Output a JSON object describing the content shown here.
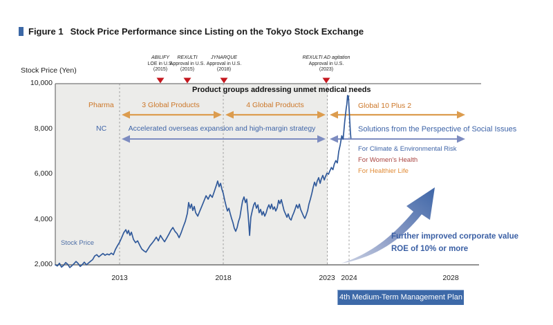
{
  "figure": {
    "label": "Figure 1",
    "title": "Stock Price Performance since Listing on the Tokyo Stock Exchange"
  },
  "chart_data": {
    "type": "line",
    "title": "Stock Price Performance since Listing on the Tokyo Stock Exchange",
    "xlabel": "",
    "ylabel": "Stock Price (Yen)",
    "series_label": "Stock Price",
    "ylim": [
      2000,
      10000
    ],
    "grid": false,
    "legend_position": "inline-left",
    "y_ticks": [
      {
        "value": 10000,
        "label": "10,000"
      },
      {
        "value": 8000,
        "label": "8,000"
      },
      {
        "value": 6000,
        "label": "6,000"
      },
      {
        "value": 4000,
        "label": "4,000"
      },
      {
        "value": 2000,
        "label": "2,000"
      }
    ],
    "x_ticks": [
      {
        "value": 2013,
        "label": "2013"
      },
      {
        "value": 2018,
        "label": "2018"
      },
      {
        "value": 2023,
        "label": "2023"
      },
      {
        "value": 2024,
        "label": "2024"
      },
      {
        "value": 2028,
        "label": "2028"
      }
    ],
    "dashed_gridline_years": [
      2013,
      2018,
      2023,
      2024
    ],
    "shaded_region_years": [
      2009.9,
      2023
    ],
    "points": [
      [
        2009.9,
        2000
      ],
      [
        2010.0,
        1950
      ],
      [
        2010.1,
        2070
      ],
      [
        2010.2,
        1900
      ],
      [
        2010.3,
        1980
      ],
      [
        2010.4,
        2100
      ],
      [
        2010.5,
        2020
      ],
      [
        2010.6,
        1880
      ],
      [
        2010.7,
        1960
      ],
      [
        2010.8,
        2050
      ],
      [
        2010.9,
        2150
      ],
      [
        2011.0,
        2060
      ],
      [
        2011.1,
        1930
      ],
      [
        2011.2,
        2010
      ],
      [
        2011.3,
        2120
      ],
      [
        2011.4,
        2000
      ],
      [
        2011.5,
        2080
      ],
      [
        2011.6,
        2160
      ],
      [
        2011.7,
        2230
      ],
      [
        2011.8,
        2390
      ],
      [
        2011.9,
        2450
      ],
      [
        2012.0,
        2350
      ],
      [
        2012.1,
        2430
      ],
      [
        2012.2,
        2500
      ],
      [
        2012.3,
        2420
      ],
      [
        2012.4,
        2480
      ],
      [
        2012.5,
        2440
      ],
      [
        2012.6,
        2520
      ],
      [
        2012.7,
        2450
      ],
      [
        2012.8,
        2680
      ],
      [
        2012.9,
        2850
      ],
      [
        2013.0,
        3000
      ],
      [
        2013.1,
        3200
      ],
      [
        2013.2,
        3420
      ],
      [
        2013.3,
        3550
      ],
      [
        2013.37,
        3380
      ],
      [
        2013.43,
        3520
      ],
      [
        2013.5,
        3300
      ],
      [
        2013.57,
        3440
      ],
      [
        2013.67,
        3120
      ],
      [
        2013.77,
        2980
      ],
      [
        2013.87,
        3060
      ],
      [
        2013.97,
        2870
      ],
      [
        2014.07,
        2700
      ],
      [
        2014.17,
        2620
      ],
      [
        2014.27,
        2560
      ],
      [
        2014.37,
        2700
      ],
      [
        2014.47,
        2850
      ],
      [
        2014.57,
        2960
      ],
      [
        2014.67,
        3080
      ],
      [
        2014.77,
        3220
      ],
      [
        2014.87,
        3060
      ],
      [
        2014.97,
        3300
      ],
      [
        2015.07,
        3150
      ],
      [
        2015.17,
        3020
      ],
      [
        2015.27,
        3180
      ],
      [
        2015.37,
        3340
      ],
      [
        2015.47,
        3520
      ],
      [
        2015.57,
        3650
      ],
      [
        2015.67,
        3480
      ],
      [
        2015.77,
        3380
      ],
      [
        2015.87,
        3200
      ],
      [
        2015.97,
        3420
      ],
      [
        2016.07,
        3680
      ],
      [
        2016.17,
        3920
      ],
      [
        2016.27,
        4280
      ],
      [
        2016.33,
        4750
      ],
      [
        2016.4,
        4500
      ],
      [
        2016.47,
        4680
      ],
      [
        2016.53,
        4400
      ],
      [
        2016.6,
        4580
      ],
      [
        2016.67,
        4300
      ],
      [
        2016.77,
        4150
      ],
      [
        2016.87,
        4380
      ],
      [
        2016.97,
        4600
      ],
      [
        2017.07,
        4820
      ],
      [
        2017.17,
        5050
      ],
      [
        2017.27,
        4900
      ],
      [
        2017.37,
        5100
      ],
      [
        2017.47,
        4980
      ],
      [
        2017.57,
        5250
      ],
      [
        2017.67,
        5520
      ],
      [
        2017.73,
        5700
      ],
      [
        2017.8,
        5450
      ],
      [
        2017.87,
        5600
      ],
      [
        2017.93,
        5350
      ],
      [
        2018.0,
        5150
      ],
      [
        2018.07,
        4850
      ],
      [
        2018.13,
        4620
      ],
      [
        2018.2,
        4380
      ],
      [
        2018.27,
        4500
      ],
      [
        2018.33,
        4280
      ],
      [
        2018.4,
        4050
      ],
      [
        2018.47,
        3850
      ],
      [
        2018.53,
        3620
      ],
      [
        2018.6,
        3480
      ],
      [
        2018.67,
        3650
      ],
      [
        2018.73,
        3900
      ],
      [
        2018.8,
        4100
      ],
      [
        2018.87,
        4500
      ],
      [
        2018.93,
        4820
      ],
      [
        2019.0,
        5000
      ],
      [
        2019.07,
        4750
      ],
      [
        2019.13,
        4900
      ],
      [
        2019.2,
        4200
      ],
      [
        2019.27,
        3300
      ],
      [
        2019.33,
        4100
      ],
      [
        2019.4,
        4400
      ],
      [
        2019.47,
        4650
      ],
      [
        2019.53,
        4750
      ],
      [
        2019.6,
        4500
      ],
      [
        2019.67,
        4650
      ],
      [
        2019.73,
        4300
      ],
      [
        2019.8,
        4450
      ],
      [
        2019.87,
        4200
      ],
      [
        2019.93,
        4350
      ],
      [
        2020.0,
        4150
      ],
      [
        2020.07,
        4300
      ],
      [
        2020.13,
        4500
      ],
      [
        2020.2,
        4650
      ],
      [
        2020.27,
        4480
      ],
      [
        2020.33,
        4680
      ],
      [
        2020.4,
        4450
      ],
      [
        2020.47,
        4560
      ],
      [
        2020.53,
        4380
      ],
      [
        2020.6,
        4520
      ],
      [
        2020.67,
        4850
      ],
      [
        2020.73,
        4700
      ],
      [
        2020.8,
        4880
      ],
      [
        2020.87,
        4620
      ],
      [
        2020.93,
        4400
      ],
      [
        2021.0,
        4250
      ],
      [
        2021.07,
        4100
      ],
      [
        2021.13,
        4250
      ],
      [
        2021.2,
        4050
      ],
      [
        2021.27,
        3980
      ],
      [
        2021.33,
        4150
      ],
      [
        2021.4,
        4300
      ],
      [
        2021.47,
        4480
      ],
      [
        2021.53,
        4650
      ],
      [
        2021.6,
        4500
      ],
      [
        2021.67,
        4680
      ],
      [
        2021.73,
        4450
      ],
      [
        2021.8,
        4300
      ],
      [
        2021.87,
        4150
      ],
      [
        2021.93,
        4050
      ],
      [
        2022.0,
        4200
      ],
      [
        2022.07,
        4400
      ],
      [
        2022.13,
        4680
      ],
      [
        2022.2,
        4900
      ],
      [
        2022.27,
        5150
      ],
      [
        2022.33,
        5400
      ],
      [
        2022.4,
        5650
      ],
      [
        2022.47,
        5480
      ],
      [
        2022.53,
        5700
      ],
      [
        2022.6,
        5850
      ],
      [
        2022.67,
        5600
      ],
      [
        2022.73,
        5800
      ],
      [
        2022.8,
        5950
      ],
      [
        2022.87,
        5750
      ],
      [
        2022.93,
        5900
      ],
      [
        2023.0,
        6050
      ],
      [
        2023.07,
        6000
      ],
      [
        2023.13,
        6150
      ],
      [
        2023.2,
        6300
      ],
      [
        2023.27,
        6200
      ],
      [
        2023.33,
        6450
      ],
      [
        2023.4,
        6600
      ],
      [
        2023.47,
        6500
      ],
      [
        2023.53,
        7000
      ],
      [
        2023.6,
        7300
      ],
      [
        2023.67,
        7700
      ],
      [
        2023.73,
        7550
      ],
      [
        2023.8,
        8300
      ],
      [
        2023.87,
        8900
      ],
      [
        2023.9,
        9100
      ],
      [
        2023.93,
        9480
      ],
      [
        2023.95,
        9300
      ],
      [
        2023.97,
        9450
      ],
      [
        2024.0,
        8900
      ],
      [
        2024.03,
        8300
      ],
      [
        2024.05,
        7900
      ],
      [
        2024.07,
        7600
      ]
    ]
  },
  "annotations": {
    "drug_events": [
      {
        "line1": "ABILIFY",
        "line2": "LOE in U.S.",
        "line3": "(2015)"
      },
      {
        "line1": "REXULTI",
        "line2": "Approval in U.S.",
        "line3": "(2015)"
      },
      {
        "line1": "JYNARQUE",
        "line2": "Approval in U.S.",
        "line3": "(2018)"
      },
      {
        "line1": "REXULTI AD agitation",
        "line2": "Approval in U.S.",
        "line3": "(2023)"
      }
    ],
    "product_groups_title": "Product groups addressing unmet medical needs",
    "pharma_label": "Pharma",
    "nc_label": "NC",
    "pharma_phases": [
      "3 Global Products",
      "4 Global Products",
      "Global 10 Plus 2"
    ],
    "nc_phases": [
      "Accelerated overseas expansion and high-margin strategy",
      "Solutions from the Perspective of Social Issues"
    ],
    "social_items": [
      "For Climate & Environmental Risk",
      "For Women's Health",
      "For Healthier Life"
    ],
    "future_line1": "Further improved corporate value",
    "future_line2": "ROE of 10% or more",
    "plan_badge": "4th Medium-Term Management Plan"
  },
  "colors": {
    "line_blue": "#30599a",
    "accent_blue": "#3c68a6",
    "arrow_blue": "#7d8cc0",
    "text_orange": "#cc7627",
    "arrow_orange": "#dc9c4e",
    "marker_red": "#c5171e",
    "shade_gray": "#ececea",
    "womens_red": "#a8433f",
    "healthier_orange": "#e08a35"
  }
}
